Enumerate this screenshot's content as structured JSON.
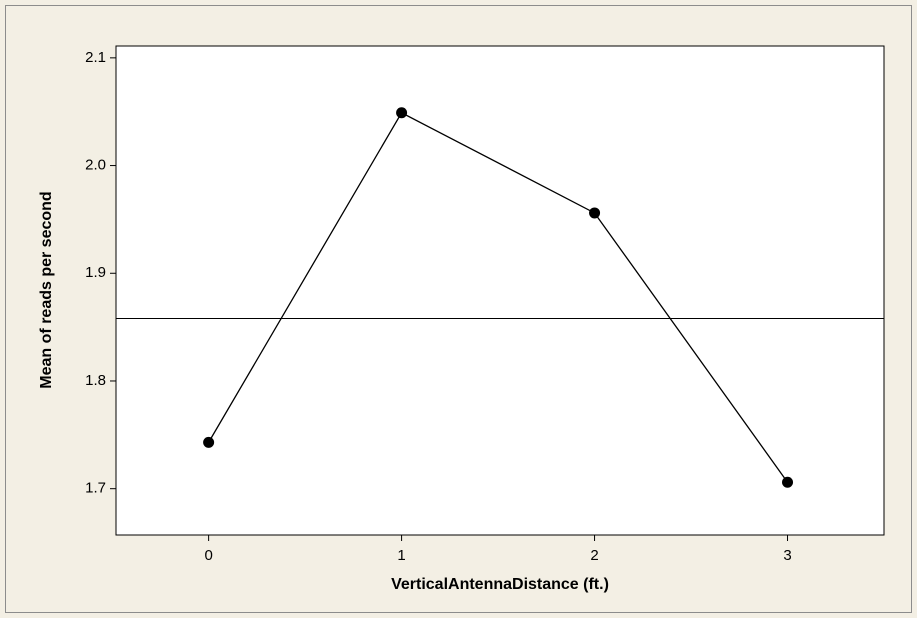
{
  "chart_data": {
    "type": "line",
    "x_label": "VerticalAntennaDistance (ft.)",
    "y_label": "Mean of reads per second",
    "x": [
      0,
      1,
      2,
      3
    ],
    "series": [
      {
        "color": "#000000",
        "values": [
          1.743,
          2.049,
          1.956,
          1.706
        ]
      }
    ],
    "reference_line": 1.858,
    "xlim": [
      -0.48,
      3.5
    ],
    "xticks": [
      0,
      1,
      2,
      3
    ],
    "ylim": [
      1.657,
      2.111
    ],
    "yticks": [
      {
        "value": 1.7,
        "label": "1.7"
      },
      {
        "value": 1.8,
        "label": "1.8"
      },
      {
        "value": 1.9,
        "label": "1.9"
      },
      {
        "value": 2.0,
        "label": "2.0"
      },
      {
        "value": 2.1,
        "label": "2.1"
      }
    ],
    "grid": false
  }
}
